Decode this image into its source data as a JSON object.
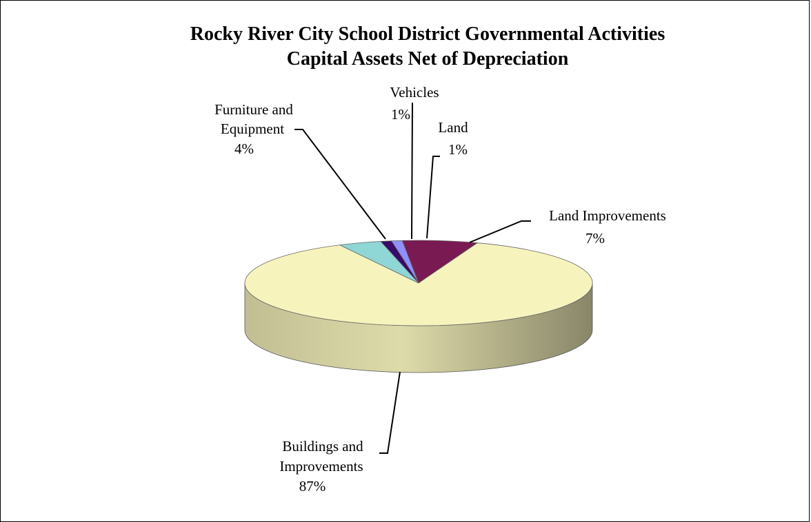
{
  "chart_data": {
    "type": "pie",
    "style": "3d",
    "title": [
      "Rocky River City School District Governmental Activities",
      "Capital Assets Net of Depreciation"
    ],
    "slices": [
      {
        "name": "Land",
        "value": 1,
        "label": "1%",
        "color": "#8f8fff"
      },
      {
        "name": "Land Improvements",
        "value": 7,
        "label": "7%",
        "color": "#7a1a52"
      },
      {
        "name": "Buildings and Improvements",
        "value": 87,
        "label": "87%",
        "color": "#f7f3bd"
      },
      {
        "name": "Furniture and Equipment",
        "value": 4,
        "label": "4%",
        "color": "#8fd6d6"
      },
      {
        "name": "Vehicles",
        "value": 1,
        "label": "1%",
        "color": "#3a0a6a"
      }
    ]
  }
}
